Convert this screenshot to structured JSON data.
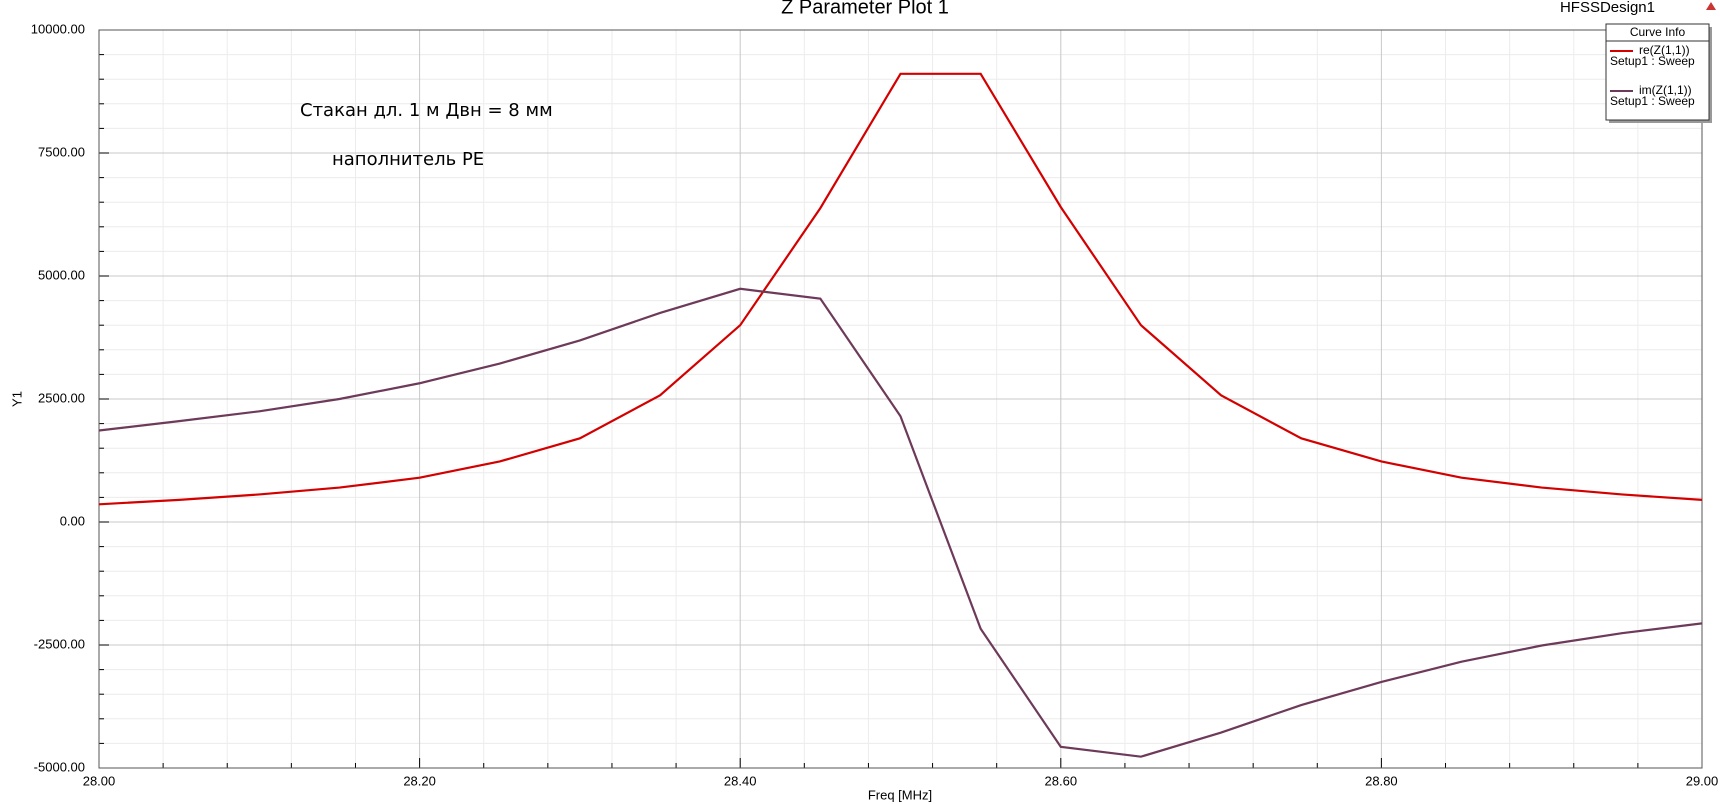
{
  "chart_data": {
    "type": "line",
    "title": "Z Parameter Plot 1",
    "design_label": "HFSSDesign1",
    "x_label": "Freq [MHz]",
    "y_label": "Y1",
    "annotations": [
      "Стакан дл. 1 м Двн = 8  мм",
      "наполнитель PE"
    ],
    "legend_title": "Curve Info",
    "legend": "top-right",
    "grid": true,
    "x": [
      28.0,
      28.05,
      28.1,
      28.15,
      28.2,
      28.25,
      28.3,
      28.35,
      28.4,
      28.45,
      28.5,
      28.55,
      28.6,
      28.65,
      28.7,
      28.75,
      28.8,
      28.85,
      28.9,
      28.95,
      29.0
    ],
    "series": [
      {
        "name": "re(Z(1,1))",
        "setup": "Setup1 : Sweep",
        "color": "#d40000",
        "values": [
          360,
          450,
          560,
          700,
          900,
          1230,
          1700,
          2575,
          4000,
          6380,
          9110,
          9110,
          6400,
          4000,
          2575,
          1700,
          1230,
          900,
          700,
          560,
          450
        ]
      },
      {
        "name": "im(Z(1,1))",
        "setup": "Setup1 : Sweep",
        "color": "#6e3a5a",
        "values": [
          1860,
          2050,
          2250,
          2500,
          2820,
          3220,
          3690,
          4250,
          4740,
          4540,
          2150,
          -2170,
          -4570,
          -4770,
          -4280,
          -3720,
          -3250,
          -2840,
          -2510,
          -2260,
          -2060
        ]
      }
    ],
    "xlim": [
      28.0,
      29.0
    ],
    "xticks": [
      {
        "value": 28.0,
        "label": "28.00"
      },
      {
        "value": 28.2,
        "label": "28.20"
      },
      {
        "value": 28.4,
        "label": "28.40"
      },
      {
        "value": 28.6,
        "label": "28.60"
      },
      {
        "value": 28.8,
        "label": "28.80"
      },
      {
        "value": 29.0,
        "label": "29.00"
      }
    ],
    "ylim": [
      -5000,
      10000
    ],
    "yticks": [
      {
        "value": -5000,
        "label": "-5000.00"
      },
      {
        "value": -2500,
        "label": "-2500.00"
      },
      {
        "value": 0,
        "label": "0.00"
      },
      {
        "value": 2500,
        "label": "2500.00"
      },
      {
        "value": 5000,
        "label": "5000.00"
      },
      {
        "value": 7500,
        "label": "7500.00"
      },
      {
        "value": 10000,
        "label": "10000.00"
      }
    ]
  }
}
